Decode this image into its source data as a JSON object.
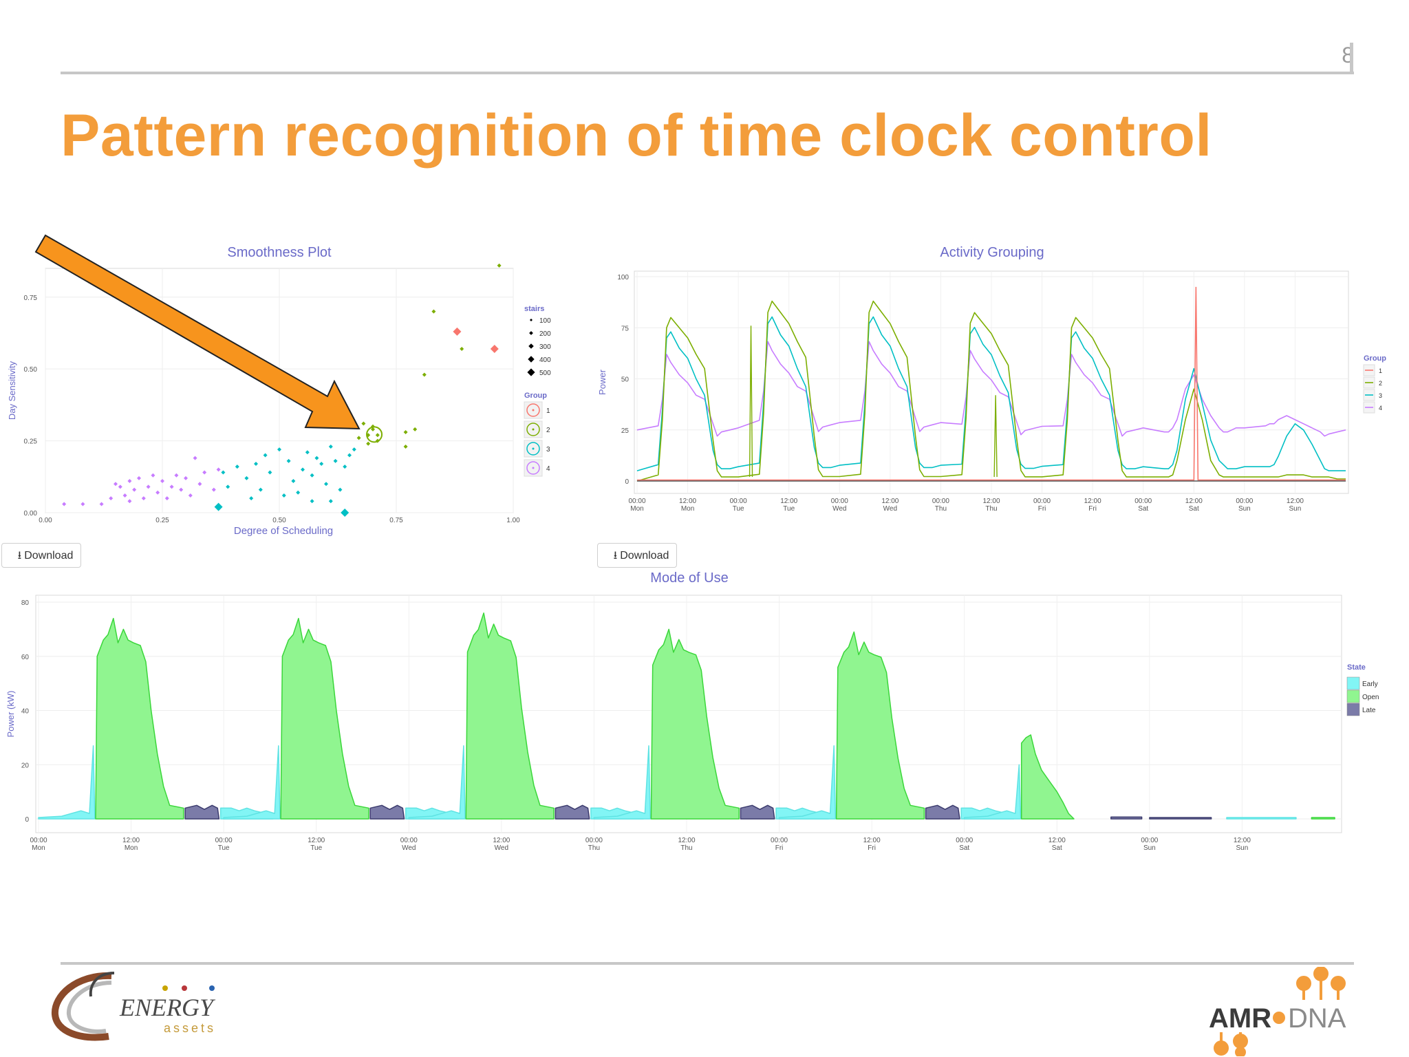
{
  "slide": {
    "number": "8",
    "title": "Pattern recognition of time clock control"
  },
  "colors": {
    "title": "#f39d3b",
    "chart_title": "#6a6ac8",
    "group1": "#f8766d",
    "group2": "#7cae00",
    "group3": "#00bfc4",
    "group4": "#c77cff",
    "early": "#82f5f5",
    "open": "#90f590",
    "late": "#7b7ba8",
    "arrow": "#f7941d"
  },
  "buttons": {
    "download_label": "Download",
    "download_icon": "download-icon"
  },
  "smoothness": {
    "title": "Smoothness Plot",
    "xlabel": "Degree of Scheduling",
    "ylabel": "Day Sensitivity",
    "x_ticks": [
      "0.00",
      "0.25",
      "0.50",
      "0.75",
      "1.00"
    ],
    "y_ticks": [
      "0.00",
      "0.25",
      "0.50",
      "0.75"
    ],
    "legend_size_title": "stairs",
    "legend_sizes": [
      "100",
      "200",
      "300",
      "400",
      "500"
    ],
    "legend_group_title": "Group",
    "legend_groups": [
      "1",
      "2",
      "3",
      "4"
    ]
  },
  "activity": {
    "title": "Activity Grouping",
    "ylabel": "Power",
    "y_ticks": [
      "0",
      "25",
      "50",
      "75",
      "100"
    ],
    "x_ticks": [
      {
        "time": "00:00",
        "day": "Mon"
      },
      {
        "time": "12:00",
        "day": "Mon"
      },
      {
        "time": "00:00",
        "day": "Tue"
      },
      {
        "time": "12:00",
        "day": "Tue"
      },
      {
        "time": "00:00",
        "day": "Wed"
      },
      {
        "time": "12:00",
        "day": "Wed"
      },
      {
        "time": "00:00",
        "day": "Thu"
      },
      {
        "time": "12:00",
        "day": "Thu"
      },
      {
        "time": "00:00",
        "day": "Fri"
      },
      {
        "time": "12:00",
        "day": "Fri"
      },
      {
        "time": "00:00",
        "day": "Sat"
      },
      {
        "time": "12:00",
        "day": "Sat"
      },
      {
        "time": "00:00",
        "day": "Sun"
      },
      {
        "time": "12:00",
        "day": "Sun"
      }
    ],
    "legend_title": "Group",
    "legend_groups": [
      "1",
      "2",
      "3",
      "4"
    ]
  },
  "mode": {
    "title": "Mode of Use",
    "ylabel": "Power (kW)",
    "y_ticks": [
      "0",
      "20",
      "40",
      "60",
      "80"
    ],
    "x_ticks": [
      {
        "time": "00:00",
        "day": "Mon"
      },
      {
        "time": "12:00",
        "day": "Mon"
      },
      {
        "time": "00:00",
        "day": "Tue"
      },
      {
        "time": "12:00",
        "day": "Tue"
      },
      {
        "time": "00:00",
        "day": "Wed"
      },
      {
        "time": "12:00",
        "day": "Wed"
      },
      {
        "time": "00:00",
        "day": "Thu"
      },
      {
        "time": "12:00",
        "day": "Thu"
      },
      {
        "time": "00:00",
        "day": "Fri"
      },
      {
        "time": "12:00",
        "day": "Fri"
      },
      {
        "time": "00:00",
        "day": "Sat"
      },
      {
        "time": "12:00",
        "day": "Sat"
      },
      {
        "time": "00:00",
        "day": "Sun"
      },
      {
        "time": "12:00",
        "day": "Sun"
      }
    ],
    "legend_title": "State",
    "legend_states": [
      "Early",
      "Open",
      "Late"
    ]
  },
  "logos": {
    "left_word": "ENERGY",
    "left_sub": "assets",
    "right_a": "AMR",
    "right_b": "DNA"
  },
  "chart_data": [
    {
      "type": "scatter",
      "title": "Smoothness Plot",
      "xlabel": "Degree of Scheduling",
      "ylabel": "Day Sensitivity",
      "xlim": [
        0,
        1
      ],
      "ylim": [
        0,
        0.85
      ],
      "series": [
        {
          "name": "1",
          "points": [
            [
              0.88,
              0.63
            ],
            [
              0.96,
              0.57
            ]
          ]
        },
        {
          "name": "2",
          "points": [
            [
              0.97,
              0.86
            ],
            [
              0.83,
              0.7
            ],
            [
              0.89,
              0.57
            ],
            [
              0.81,
              0.48
            ],
            [
              0.79,
              0.29
            ],
            [
              0.77,
              0.28
            ],
            [
              0.77,
              0.23
            ],
            [
              0.7,
              0.3
            ],
            [
              0.7,
              0.29
            ],
            [
              0.71,
              0.27
            ],
            [
              0.71,
              0.25
            ],
            [
              0.69,
              0.27
            ],
            [
              0.68,
              0.31
            ],
            [
              0.67,
              0.26
            ],
            [
              0.69,
              0.24
            ]
          ]
        },
        {
          "name": "3",
          "points": [
            [
              0.41,
              0.16
            ],
            [
              0.43,
              0.12
            ],
            [
              0.45,
              0.17
            ],
            [
              0.47,
              0.2
            ],
            [
              0.48,
              0.14
            ],
            [
              0.5,
              0.22
            ],
            [
              0.52,
              0.18
            ],
            [
              0.53,
              0.11
            ],
            [
              0.55,
              0.15
            ],
            [
              0.56,
              0.21
            ],
            [
              0.57,
              0.13
            ],
            [
              0.58,
              0.19
            ],
            [
              0.59,
              0.17
            ],
            [
              0.6,
              0.1
            ],
            [
              0.61,
              0.23
            ],
            [
              0.62,
              0.18
            ],
            [
              0.63,
              0.08
            ],
            [
              0.64,
              0.16
            ],
            [
              0.65,
              0.2
            ],
            [
              0.66,
              0.22
            ],
            [
              0.38,
              0.14
            ],
            [
              0.39,
              0.09
            ],
            [
              0.44,
              0.05
            ],
            [
              0.46,
              0.08
            ],
            [
              0.51,
              0.06
            ],
            [
              0.54,
              0.07
            ],
            [
              0.57,
              0.04
            ],
            [
              0.61,
              0.04
            ],
            [
              0.37,
              0.02
            ],
            [
              0.64,
              0.0
            ]
          ]
        },
        {
          "name": "4",
          "points": [
            [
              0.04,
              0.03
            ],
            [
              0.08,
              0.03
            ],
            [
              0.12,
              0.03
            ],
            [
              0.14,
              0.05
            ],
            [
              0.15,
              0.1
            ],
            [
              0.17,
              0.06
            ],
            [
              0.18,
              0.04
            ],
            [
              0.19,
              0.08
            ],
            [
              0.2,
              0.12
            ],
            [
              0.21,
              0.05
            ],
            [
              0.22,
              0.09
            ],
            [
              0.23,
              0.13
            ],
            [
              0.24,
              0.07
            ],
            [
              0.25,
              0.11
            ],
            [
              0.26,
              0.05
            ],
            [
              0.27,
              0.09
            ],
            [
              0.28,
              0.13
            ],
            [
              0.29,
              0.08
            ],
            [
              0.3,
              0.12
            ],
            [
              0.31,
              0.06
            ],
            [
              0.32,
              0.19
            ],
            [
              0.33,
              0.1
            ],
            [
              0.34,
              0.14
            ],
            [
              0.36,
              0.08
            ],
            [
              0.37,
              0.15
            ],
            [
              0.18,
              0.11
            ],
            [
              0.16,
              0.09
            ]
          ]
        }
      ]
    },
    {
      "type": "line",
      "title": "Activity Grouping",
      "ylabel": "Power",
      "ylim": [
        0,
        100
      ],
      "x_hours": [
        0,
        5,
        6,
        7,
        8,
        10,
        12,
        14,
        16,
        18,
        19,
        20,
        22,
        24
      ],
      "series": [
        {
          "name": "1",
          "note_values": "flat near 0 with a single spike to ~95 on Sat 12:00"
        },
        {
          "name": "2",
          "values_weekday": [
            0,
            3,
            30,
            75,
            80,
            75,
            70,
            62,
            55,
            20,
            5,
            2,
            2,
            2
          ]
        },
        {
          "name": "3",
          "values_weekday": [
            5,
            8,
            35,
            70,
            73,
            65,
            60,
            50,
            42,
            15,
            8,
            6,
            6,
            7
          ]
        },
        {
          "name": "4",
          "values_weekday": [
            25,
            27,
            40,
            62,
            58,
            52,
            48,
            42,
            40,
            28,
            22,
            24,
            25,
            26
          ]
        }
      ]
    },
    {
      "type": "area",
      "title": "Mode of Use",
      "ylabel": "Power (kW)",
      "ylim": [
        0,
        80
      ],
      "days": [
        "Mon",
        "Tue",
        "Wed",
        "Thu",
        "Fri",
        "Sat",
        "Sun"
      ],
      "peak_kw": [
        74,
        74,
        76,
        70,
        69,
        31,
        0
      ],
      "series": [
        {
          "name": "Early",
          "note": "spike ~27 kW just before opening, ~2-4 kW overnight"
        },
        {
          "name": "Open",
          "note": "daily operating hours, peak values per day above"
        },
        {
          "name": "Late",
          "note": "~3-5 kW after closing"
        }
      ]
    }
  ]
}
